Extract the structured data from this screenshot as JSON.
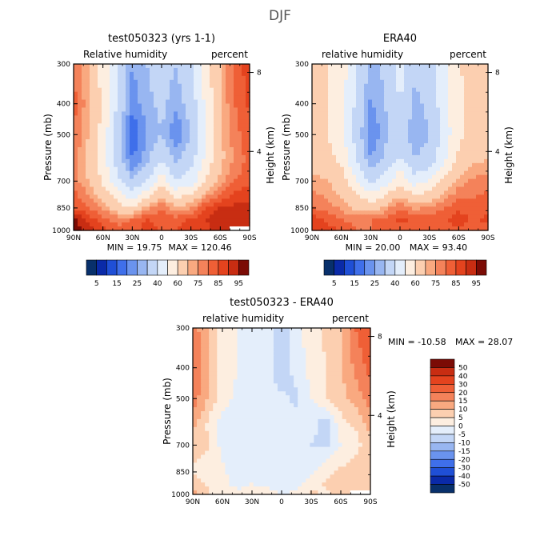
{
  "figure": {
    "supertitle": "DJF"
  },
  "colors": {
    "diverging": [
      "#08306b",
      "#0a2aa8",
      "#1f4fd6",
      "#3f6fea",
      "#6a93ee",
      "#98b6f1",
      "#c3d6f6",
      "#e4eefb",
      "#fdeee0",
      "#fccfb0",
      "#f9a980",
      "#f4825a",
      "#ef5f36",
      "#e4431e",
      "#c82d12",
      "#a3180a",
      "#7b0b05"
    ],
    "missing": "#ffffff"
  },
  "chart_data": [
    {
      "type": "heatmap",
      "id": "model",
      "title": "test050323 (yrs 1-1)",
      "left_label": "Relative humidity",
      "right_label": "percent",
      "ylabel": "Pressure (mb)",
      "y2label": "Height (km)",
      "x_ticks": [
        "90N",
        "60N",
        "30N",
        "0",
        "30S",
        "60S",
        "90S"
      ],
      "y_ticks": [
        "300",
        "400",
        "500",
        "700",
        "850",
        "1000"
      ],
      "y_tick_values": [
        300,
        400,
        500,
        700,
        850,
        1000
      ],
      "y2_ticks": [
        "8",
        "4"
      ],
      "y2_tick_values": [
        8,
        4
      ],
      "x_range": [
        90,
        -90
      ],
      "y_range": [
        300,
        1000
      ],
      "y_scale": "log",
      "min_text": "MIN =  19.75",
      "max_text": "MAX = 120.46",
      "min": 19.75,
      "max": 120.46,
      "colorbar_labels": [
        "5",
        "15",
        "25",
        "40",
        "60",
        "75",
        "85",
        "95"
      ],
      "colorbar_orientation": "horizontal",
      "field": {
        "lats": [
          90,
          75,
          60,
          45,
          30,
          15,
          0,
          -15,
          -30,
          -45,
          -60,
          -75,
          -90
        ],
        "levels": [
          300,
          400,
          500,
          600,
          700,
          850,
          925,
          1000
        ],
        "values": [
          [
            80,
            70,
            55,
            40,
            25,
            30,
            35,
            30,
            38,
            55,
            70,
            82,
            88
          ],
          [
            82,
            72,
            58,
            38,
            22,
            28,
            32,
            26,
            34,
            52,
            70,
            80,
            86
          ],
          [
            80,
            70,
            56,
            35,
            15,
            25,
            30,
            20,
            30,
            50,
            68,
            78,
            84
          ],
          [
            78,
            68,
            54,
            36,
            20,
            28,
            40,
            28,
            36,
            52,
            68,
            76,
            82
          ],
          [
            78,
            70,
            58,
            42,
            30,
            40,
            55,
            40,
            45,
            60,
            72,
            80,
            84
          ],
          [
            85,
            80,
            75,
            65,
            60,
            72,
            80,
            72,
            75,
            85,
            90,
            92,
            92
          ],
          [
            96,
            88,
            82,
            78,
            80,
            86,
            82,
            82,
            86,
            90,
            94,
            92,
            92
          ],
          [
            100,
            94,
            86,
            82,
            82,
            88,
            84,
            85,
            88,
            88,
            92,
            null,
            null
          ]
        ]
      }
    },
    {
      "type": "heatmap",
      "id": "era40",
      "title": "ERA40",
      "left_label": "relative humidity",
      "right_label": "percent",
      "ylabel": "Pressure (mb)",
      "y2label": "Height (km)",
      "x_ticks": [
        "90N",
        "60N",
        "30N",
        "0",
        "30S",
        "60S",
        "90S"
      ],
      "y_ticks": [
        "300",
        "400",
        "500",
        "700",
        "850",
        "1000"
      ],
      "y_tick_values": [
        300,
        400,
        500,
        700,
        850,
        1000
      ],
      "y2_ticks": [
        "8",
        "4"
      ],
      "y2_tick_values": [
        8,
        4
      ],
      "x_range": [
        90,
        -90
      ],
      "y_range": [
        300,
        1000
      ],
      "y_scale": "log",
      "min_text": "MIN =  20.00",
      "max_text": "MAX =  93.40",
      "min": 20.0,
      "max": 93.4,
      "colorbar_labels": [
        "5",
        "15",
        "25",
        "40",
        "60",
        "75",
        "85",
        "95"
      ],
      "colorbar_orientation": "horizontal",
      "field": {
        "lats": [
          90,
          75,
          60,
          45,
          30,
          15,
          0,
          -15,
          -30,
          -45,
          -60,
          -75,
          -90
        ],
        "levels": [
          300,
          400,
          500,
          600,
          700,
          850,
          925,
          1000
        ],
        "values": [
          [
            62,
            60,
            55,
            40,
            28,
            32,
            45,
            32,
            35,
            48,
            60,
            62,
            62
          ],
          [
            62,
            60,
            55,
            38,
            24,
            30,
            40,
            28,
            32,
            46,
            58,
            62,
            62
          ],
          [
            62,
            60,
            54,
            36,
            20,
            28,
            35,
            25,
            30,
            44,
            58,
            64,
            65
          ],
          [
            66,
            64,
            58,
            40,
            25,
            32,
            42,
            30,
            34,
            48,
            62,
            68,
            70
          ],
          [
            72,
            70,
            65,
            52,
            38,
            45,
            58,
            45,
            50,
            62,
            72,
            76,
            78
          ],
          [
            80,
            78,
            74,
            68,
            66,
            72,
            80,
            74,
            76,
            80,
            84,
            82,
            84
          ],
          [
            88,
            84,
            80,
            78,
            80,
            82,
            86,
            84,
            82,
            84,
            88,
            84,
            86
          ],
          [
            90,
            88,
            84,
            80,
            80,
            82,
            84,
            82,
            82,
            82,
            84,
            82,
            84
          ]
        ]
      }
    },
    {
      "type": "heatmap",
      "id": "diff",
      "title": "test050323 - ERA40",
      "left_label": "relative humidity",
      "right_label": "percent",
      "ylabel": "Pressure (mb)",
      "y2label": "Height (km)",
      "x_ticks": [
        "90N",
        "60N",
        "30N",
        "0",
        "30S",
        "60S",
        "90S"
      ],
      "y_ticks": [
        "300",
        "400",
        "500",
        "700",
        "850",
        "1000"
      ],
      "y_tick_values": [
        300,
        400,
        500,
        700,
        850,
        1000
      ],
      "y2_ticks": [
        "8",
        "4"
      ],
      "y2_tick_values": [
        8,
        4
      ],
      "x_range": [
        90,
        -90
      ],
      "y_range": [
        300,
        1000
      ],
      "y_scale": "log",
      "min_text": "MIN = -10.58",
      "max_text": "MAX =  28.07",
      "min": -10.58,
      "max": 28.07,
      "colorbar_labels": [
        "50",
        "40",
        "30",
        "20",
        "15",
        "10",
        "5",
        "0",
        "-5",
        "-10",
        "-15",
        "-20",
        "-30",
        "-40",
        "-50"
      ],
      "colorbar_orientation": "vertical",
      "field": {
        "lats": [
          90,
          75,
          60,
          45,
          30,
          15,
          0,
          -15,
          -30,
          -45,
          -60,
          -75,
          -90
        ],
        "levels": [
          300,
          400,
          500,
          600,
          700,
          850,
          925,
          1000
        ],
        "values": [
          [
            18,
            10,
            2,
            0,
            -2,
            -2,
            -8,
            -2,
            3,
            6,
            10,
            20,
            26
          ],
          [
            20,
            12,
            3,
            0,
            -2,
            -3,
            -9,
            -3,
            2,
            5,
            10,
            16,
            22
          ],
          [
            18,
            10,
            2,
            -1,
            -4,
            -2,
            -4,
            -6,
            0,
            5,
            8,
            12,
            18
          ],
          [
            12,
            4,
            -2,
            -4,
            -3,
            -4,
            -2,
            -3,
            -3,
            -8,
            3,
            6,
            12
          ],
          [
            6,
            6,
            -2,
            -2,
            -2,
            -5,
            -3,
            -4,
            -5,
            -6,
            0,
            3,
            8
          ],
          [
            5,
            2,
            1,
            -3,
            -4,
            -1,
            0,
            -2,
            -1,
            4,
            6,
            8,
            10
          ],
          [
            8,
            4,
            2,
            -2,
            0,
            -4,
            -4,
            -2,
            3,
            6,
            6,
            8,
            6
          ],
          [
            12,
            6,
            2,
            2,
            2,
            6,
            -2,
            2,
            6,
            4,
            8,
            null,
            null
          ]
        ]
      }
    }
  ]
}
